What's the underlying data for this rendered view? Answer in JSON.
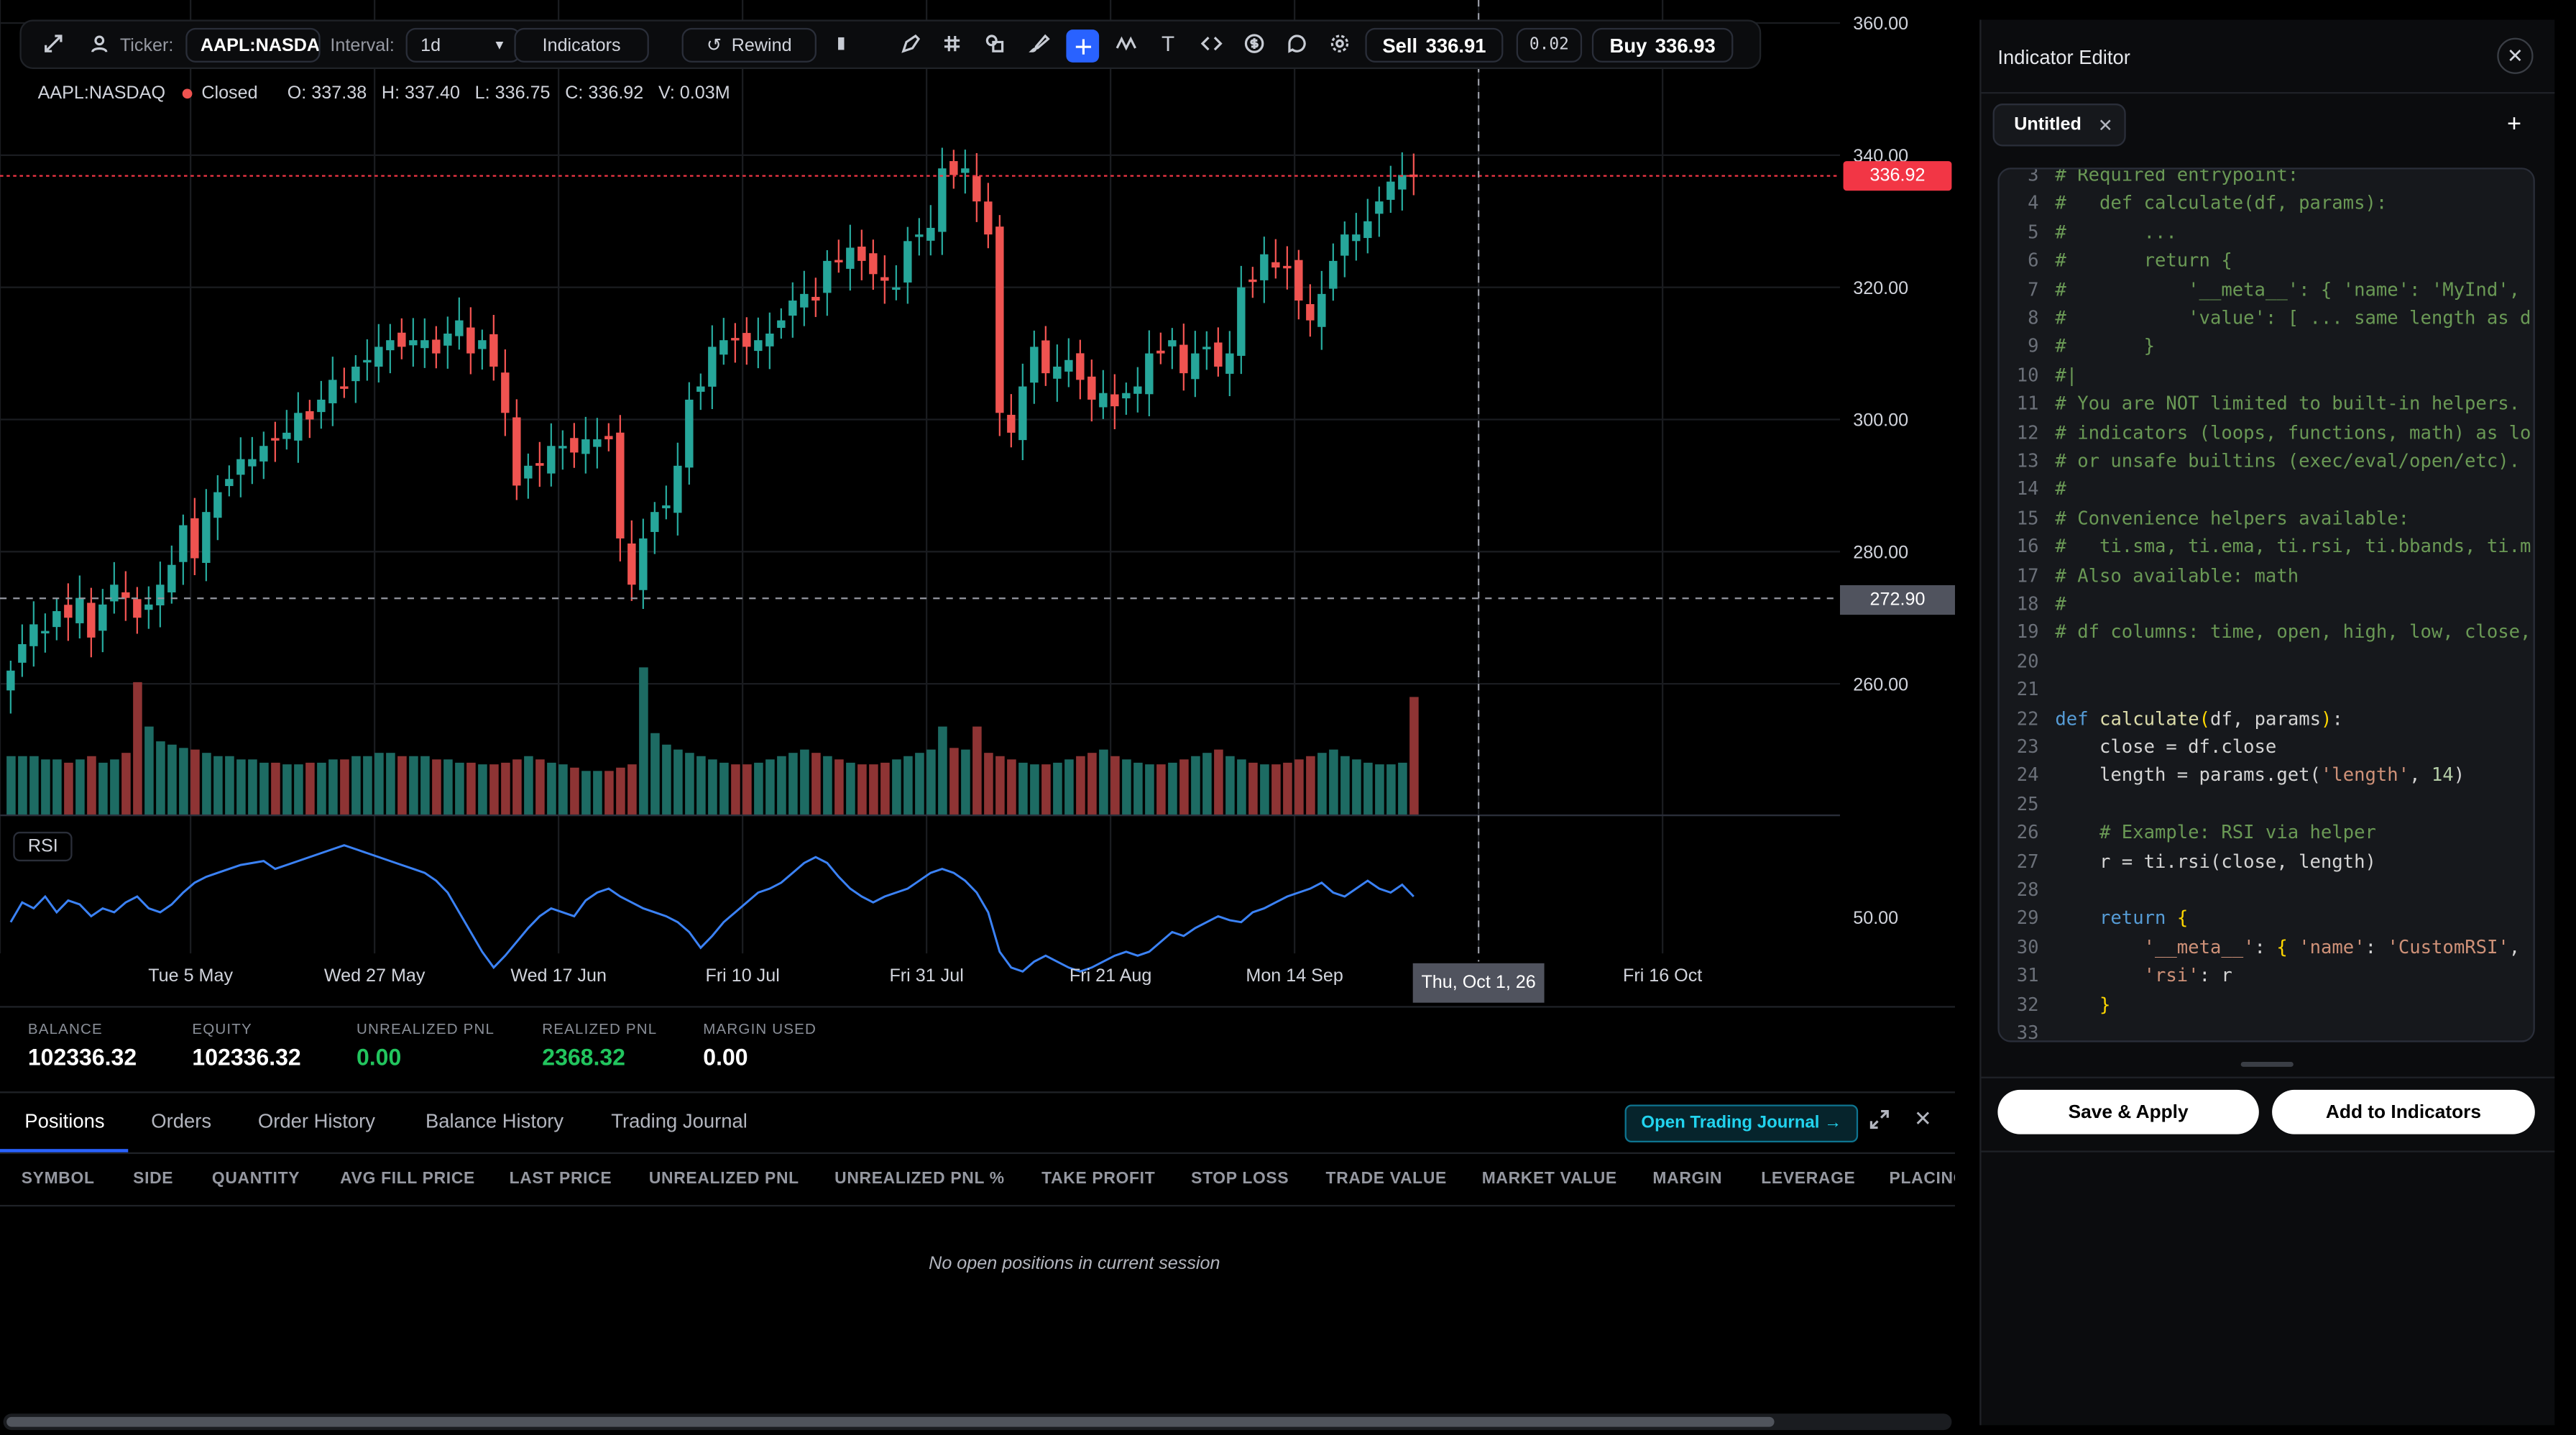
{
  "toolbar": {
    "ticker_label": "Ticker:",
    "ticker_value": "AAPL:NASDAQ",
    "interval_label": "Interval:",
    "interval_value": "1d",
    "indicators_button": "Indicators",
    "rewind_button": "Rewind",
    "sell_label": "Sell",
    "sell_price": "336.91",
    "spread": "0.02",
    "buy_label": "Buy",
    "buy_price": "336.93",
    "icons": [
      "expand-icon",
      "user-icon",
      "rewind-icon",
      "bar-chart-icon",
      "pencil-icon",
      "grid-icon",
      "shapes-icon",
      "brush-icon",
      "crosshair-icon",
      "wave-icon",
      "text-icon",
      "code-icon",
      "currency-icon",
      "comment-icon",
      "settings-icon"
    ]
  },
  "legend": {
    "symbol": "AAPL:NASDAQ",
    "status": "Closed",
    "open": "O: 337.38",
    "high": "H: 337.40",
    "low": "L: 336.75",
    "close": "C: 336.92",
    "volume": "V: 0.03M"
  },
  "chart": {
    "y_ticks": [
      "360.00",
      "340.00",
      "320.00",
      "300.00",
      "280.00",
      "260.00"
    ],
    "rsi_label": "RSI",
    "rsi_tick": "50.00",
    "x_ticks": [
      "Tue 5 May",
      "Wed 27 May",
      "Wed 17 Jun",
      "Fri 10 Jul",
      "Fri 31 Jul",
      "Fri 21 Aug",
      "Mon 14 Sep",
      "Fri 16 Oct"
    ],
    "crosshair_date": "Thu, Oct 1, 26",
    "crosshair_price": "272.90",
    "last_price": "336.92",
    "colors": {
      "up": "#26a69a",
      "down": "#ef5350",
      "rsi": "#2962ff",
      "last": "#f23645",
      "grid": "#1a1c20"
    }
  },
  "chart_data": {
    "type": "candlestick",
    "ylim": [
      252,
      362
    ],
    "y_axis_ticks": [
      260,
      280,
      300,
      320,
      340,
      360
    ],
    "closes": [
      262,
      266,
      269,
      268,
      271,
      270,
      273,
      267,
      272,
      275,
      273,
      270,
      272,
      275,
      278,
      284,
      279,
      286,
      289,
      291,
      294,
      294,
      296,
      297,
      298,
      301,
      300,
      303,
      306,
      305,
      308,
      309,
      311,
      312,
      311,
      312,
      312,
      310,
      313,
      315,
      310,
      312,
      308,
      301,
      290,
      293,
      293,
      296,
      296,
      295,
      297,
      297,
      297,
      282,
      275,
      282,
      286,
      287,
      293,
      303,
      305,
      311,
      312,
      312,
      311,
      312,
      313,
      315,
      318,
      319,
      318,
      324,
      324,
      326,
      324,
      322,
      321,
      320,
      327,
      328,
      329,
      338,
      337,
      338,
      333,
      328,
      301,
      298,
      305,
      311,
      307,
      308,
      309,
      306,
      303,
      304,
      302,
      304,
      305,
      310,
      310,
      312,
      307,
      310,
      311,
      308,
      310,
      320,
      321,
      325,
      323,
      323,
      318,
      315,
      319,
      324,
      328,
      328,
      330,
      333,
      336,
      337,
      337
    ],
    "volume_levels": [
      40,
      40,
      40,
      38,
      38,
      36,
      38,
      40,
      36,
      38,
      42,
      90,
      60,
      50,
      48,
      46,
      44,
      42,
      40,
      40,
      38,
      38,
      36,
      36,
      34,
      34,
      36,
      36,
      38,
      38,
      40,
      40,
      42,
      42,
      40,
      40,
      40,
      38,
      38,
      36,
      36,
      34,
      34,
      36,
      38,
      40,
      38,
      36,
      34,
      32,
      30,
      30,
      30,
      32,
      34,
      100,
      55,
      48,
      44,
      42,
      40,
      38,
      36,
      34,
      34,
      36,
      38,
      40,
      42,
      44,
      42,
      40,
      38,
      36,
      34,
      34,
      36,
      38,
      40,
      42,
      44,
      60,
      46,
      44,
      60,
      42,
      40,
      38,
      36,
      34,
      34,
      36,
      38,
      40,
      42,
      44,
      40,
      38,
      36,
      34,
      34,
      36,
      38,
      40,
      42,
      44,
      40,
      38,
      36,
      34,
      34,
      36,
      38,
      40,
      42,
      44,
      40,
      38,
      36,
      34,
      34,
      36,
      80
    ],
    "rsi": [
      45,
      55,
      52,
      58,
      50,
      56,
      54,
      48,
      52,
      50,
      55,
      58,
      52,
      50,
      54,
      60,
      65,
      68,
      70,
      72,
      74,
      75,
      76,
      72,
      74,
      76,
      78,
      80,
      82,
      84,
      82,
      80,
      78,
      76,
      74,
      72,
      70,
      66,
      60,
      50,
      40,
      30,
      22,
      28,
      35,
      42,
      48,
      52,
      50,
      48,
      56,
      60,
      62,
      58,
      55,
      52,
      50,
      48,
      45,
      40,
      32,
      38,
      45,
      50,
      55,
      60,
      62,
      65,
      70,
      75,
      78,
      75,
      68,
      62,
      58,
      55,
      58,
      60,
      62,
      66,
      70,
      72,
      70,
      66,
      60,
      50,
      30,
      22,
      20,
      25,
      28,
      25,
      22,
      20,
      22,
      25,
      28,
      30,
      28,
      30,
      35,
      40,
      38,
      42,
      45,
      48,
      46,
      45,
      50,
      52,
      55,
      58,
      60,
      62,
      65,
      60,
      58,
      62,
      66,
      62,
      60,
      64,
      58
    ]
  },
  "stats": {
    "balance_label": "BALANCE",
    "balance": "102336.32",
    "equity_label": "EQUITY",
    "equity": "102336.32",
    "unrealized_label": "UNREALIZED PNL",
    "unrealized": "0.00",
    "realized_label": "REALIZED PNL",
    "realized": "2368.32",
    "margin_label": "MARGIN USED",
    "margin": "0.00"
  },
  "tabs": [
    "Positions",
    "Orders",
    "Order History",
    "Balance History",
    "Trading Journal"
  ],
  "journal_button": "Open Trading Journal →",
  "columns": [
    "SYMBOL",
    "SIDE",
    "QUANTITY",
    "AVG FILL PRICE",
    "LAST PRICE",
    "UNREALIZED PNL",
    "UNREALIZED PNL %",
    "TAKE PROFIT",
    "STOP LOSS",
    "TRADE VALUE",
    "MARKET VALUE",
    "MARGIN",
    "LEVERAGE",
    "PLACING"
  ],
  "empty_message": "No open positions in current session",
  "editor": {
    "title": "Indicator Editor",
    "tab_name": "Untitled",
    "save_apply": "Save & Apply",
    "add_indicators": "Add to Indicators",
    "code_lines": [
      {
        "n": "3",
        "t": "# Required entrypoint:",
        "c": "cm"
      },
      {
        "n": "4",
        "t": "#   def calculate(df, params):",
        "c": "cm"
      },
      {
        "n": "5",
        "t": "#       ...",
        "c": "cm"
      },
      {
        "n": "6",
        "t": "#       return {",
        "c": "cm"
      },
      {
        "n": "7",
        "t": "#           '__meta__': { 'name': 'MyInd',",
        "c": "cm"
      },
      {
        "n": "8",
        "t": "#           'value': [ ... same length as d",
        "c": "cm"
      },
      {
        "n": "9",
        "t": "#       }",
        "c": "cm"
      },
      {
        "n": "10",
        "t": "#|",
        "c": "cm"
      },
      {
        "n": "11",
        "t": "# You are NOT limited to built-in helpers.",
        "c": "cm"
      },
      {
        "n": "12",
        "t": "# indicators (loops, functions, math) as lo",
        "c": "cm"
      },
      {
        "n": "13",
        "t": "# or unsafe builtins (exec/eval/open/etc).",
        "c": "cm"
      },
      {
        "n": "14",
        "t": "#",
        "c": "cm"
      },
      {
        "n": "15",
        "t": "# Convenience helpers available:",
        "c": "cm"
      },
      {
        "n": "16",
        "t": "#   ti.sma, ti.ema, ti.rsi, ti.bbands, ti.m",
        "c": "cm"
      },
      {
        "n": "17",
        "t": "# Also available: math",
        "c": "cm"
      },
      {
        "n": "18",
        "t": "#",
        "c": "cm"
      },
      {
        "n": "19",
        "t": "# df columns: time, open, high, low, close,",
        "c": "cm"
      },
      {
        "n": "20",
        "t": "",
        "c": "tx"
      },
      {
        "n": "21",
        "t": "",
        "c": "tx"
      },
      {
        "n": "22",
        "t": "def calculate(df, params):",
        "c": "def"
      },
      {
        "n": "23",
        "t": "    close = df.close",
        "c": "tx"
      },
      {
        "n": "24",
        "t": "    length = params.get('length', 14)",
        "c": "len"
      },
      {
        "n": "25",
        "t": "",
        "c": "tx"
      },
      {
        "n": "26",
        "t": "    # Example: RSI via helper",
        "c": "cm"
      },
      {
        "n": "27",
        "t": "    r = ti.rsi(close, length)",
        "c": "tx"
      },
      {
        "n": "28",
        "t": "",
        "c": "tx"
      },
      {
        "n": "29",
        "t": "    return {",
        "c": "ret"
      },
      {
        "n": "30",
        "t": "        '__meta__': { 'name': 'CustomRSI',",
        "c": "meta"
      },
      {
        "n": "31",
        "t": "        'rsi': r",
        "c": "rsi"
      },
      {
        "n": "32",
        "t": "    }",
        "c": "close"
      },
      {
        "n": "33",
        "t": "",
        "c": "tx"
      }
    ]
  }
}
